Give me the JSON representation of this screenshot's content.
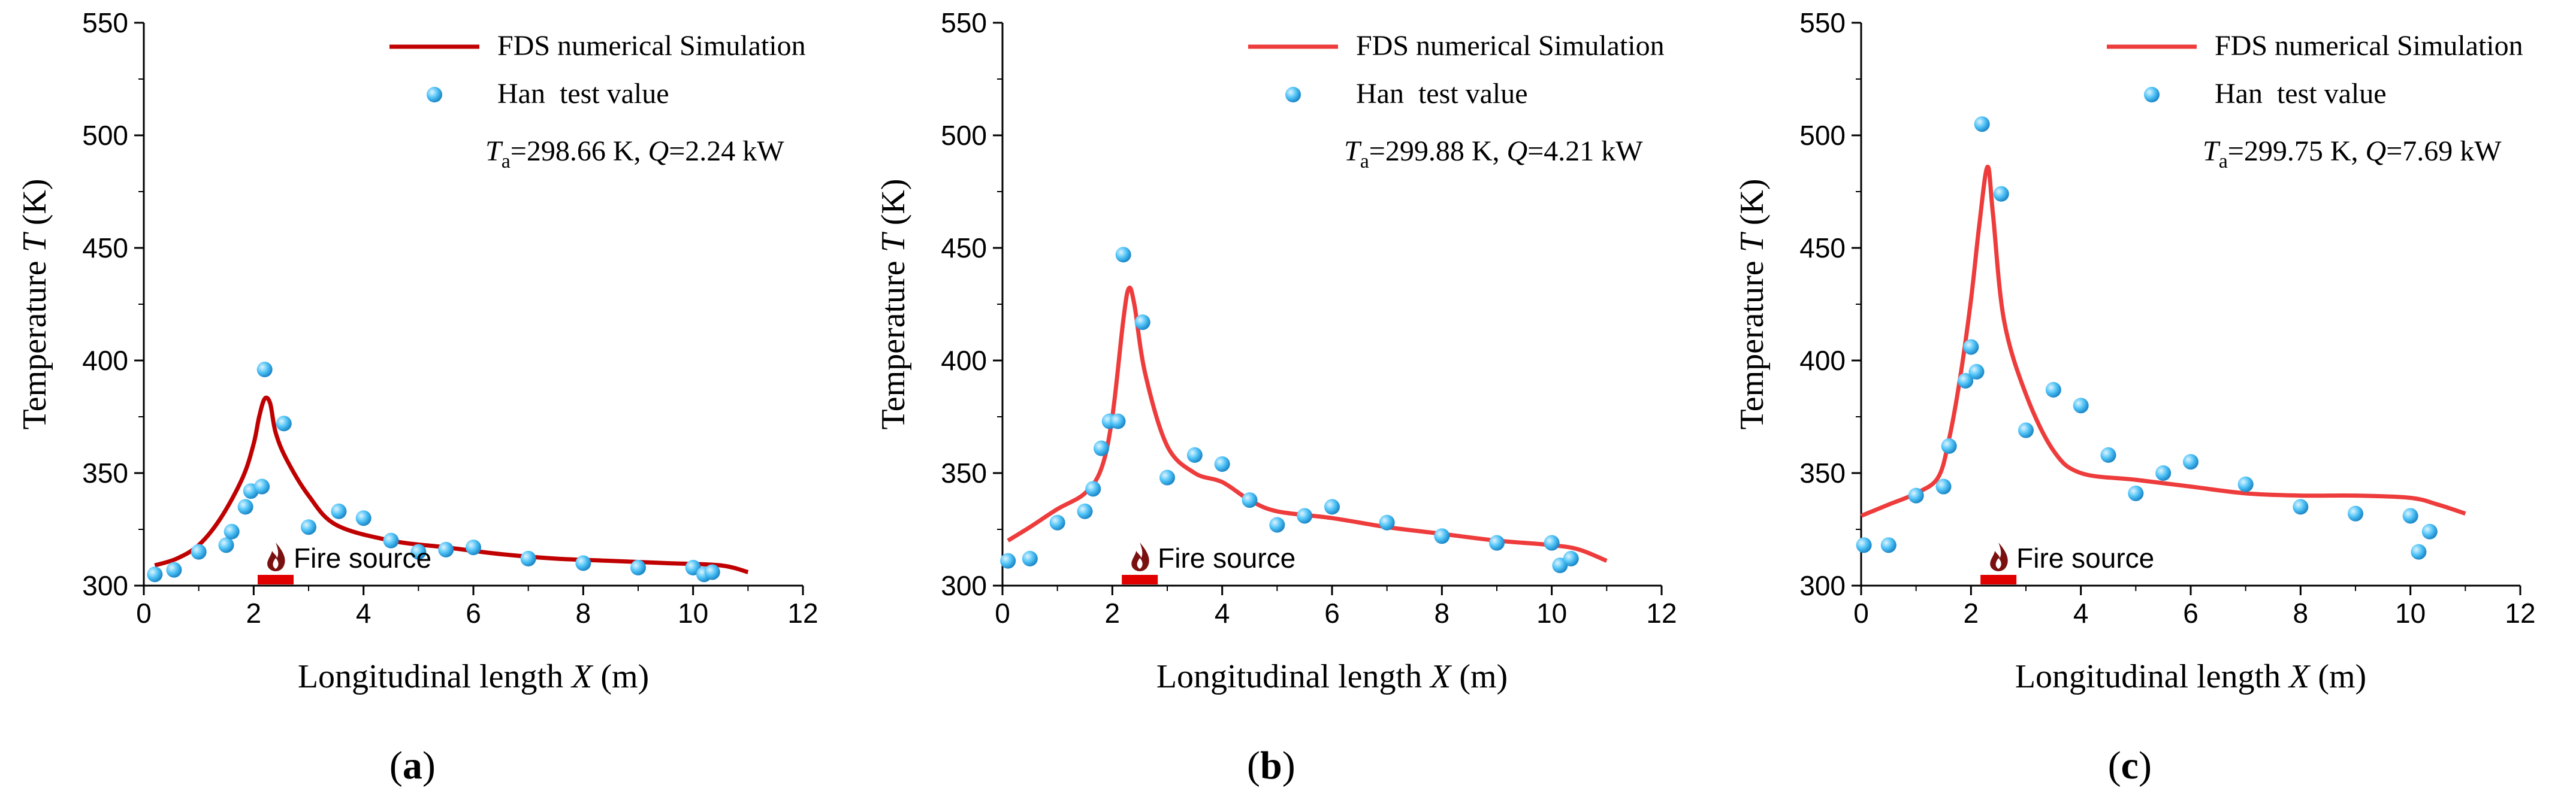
{
  "chart_data": [
    {
      "type": "line+scatter",
      "panel_label": "a",
      "xlabel": "Longitudinal length",
      "xlabel_var": "X",
      "xlabel_unit": "(m)",
      "ylabel": "Temperature",
      "ylabel_var": "T",
      "ylabel_unit": "(K)",
      "xlim": [
        0,
        12
      ],
      "ylim": [
        300,
        550
      ],
      "xticks": [
        0,
        2,
        4,
        6,
        8,
        10,
        12
      ],
      "yticks": [
        300,
        350,
        400,
        450,
        500,
        550
      ],
      "line_color": "#c00000",
      "series": [
        {
          "name": "FDS numerical Simulation",
          "kind": "line",
          "x": [
            0.2,
            0.6,
            1.0,
            1.4,
            1.8,
            2.0,
            2.1,
            2.2,
            2.3,
            2.4,
            2.6,
            3.0,
            3.5,
            4.5,
            5.5,
            6.5,
            7.5,
            8.5,
            9.5,
            10.5,
            11.0
          ],
          "y": [
            309,
            312,
            318,
            330,
            348,
            363,
            375,
            383,
            381,
            368,
            356,
            340,
            327,
            320,
            317,
            314,
            312,
            311,
            310,
            309,
            306
          ]
        },
        {
          "name": "Han  test value",
          "kind": "scatter",
          "x": [
            0.2,
            0.55,
            1.0,
            1.5,
            1.6,
            1.85,
            1.95,
            2.15,
            2.2,
            2.55,
            3.0,
            3.55,
            4.0,
            4.5,
            5.0,
            5.5,
            6.0,
            7.0,
            8.0,
            9.0,
            10.0,
            10.2,
            10.35
          ],
          "y": [
            305,
            307,
            315,
            318,
            324,
            335,
            342,
            344,
            396,
            372,
            326,
            333,
            330,
            320,
            315,
            316,
            317,
            312,
            310,
            308,
            308,
            305,
            306
          ]
        }
      ],
      "annotation": {
        "ta_label": "T",
        "ta_sub": "a",
        "ta_value": "=298.66 K, ",
        "q_label": "Q",
        "q_value": "=2.24 kW"
      },
      "fire_label": "Fire source",
      "fire_x": 2.4
    },
    {
      "type": "line+scatter",
      "panel_label": "b",
      "xlabel": "Longitudinal length",
      "xlabel_var": "X",
      "xlabel_unit": "(m)",
      "ylabel": "Temperature",
      "ylabel_var": "T",
      "ylabel_unit": "(K)",
      "xlim": [
        0,
        12
      ],
      "ylim": [
        300,
        550
      ],
      "xticks": [
        0,
        2,
        4,
        6,
        8,
        10,
        12
      ],
      "yticks": [
        300,
        350,
        400,
        450,
        500,
        550
      ],
      "line_color": "#ee3b3b",
      "series": [
        {
          "name": "FDS  numerical Simulation",
          "kind": "line",
          "x": [
            0.1,
            0.5,
            1.0,
            1.5,
            1.8,
            2.0,
            2.2,
            2.3,
            2.4,
            2.6,
            3.0,
            3.5,
            4.0,
            4.5,
            5.0,
            6.0,
            7.0,
            8.0,
            9.0,
            10.0,
            10.5,
            11.0
          ],
          "y": [
            320,
            326,
            334,
            341,
            352,
            375,
            418,
            432,
            425,
            394,
            362,
            350,
            346,
            338,
            333,
            330,
            326,
            323,
            320,
            318,
            316,
            311
          ]
        },
        {
          "name": "Han  test value",
          "kind": "scatter",
          "x": [
            0.1,
            0.5,
            1.0,
            1.5,
            1.65,
            1.8,
            1.95,
            2.1,
            2.2,
            2.55,
            3.0,
            3.5,
            4.0,
            4.5,
            5.0,
            5.5,
            6.0,
            7.0,
            8.0,
            9.0,
            10.0,
            10.15,
            10.35
          ],
          "y": [
            311,
            312,
            328,
            333,
            343,
            361,
            373,
            373,
            447,
            417,
            348,
            358,
            354,
            338,
            327,
            331,
            335,
            328,
            322,
            319,
            319,
            309,
            312
          ]
        }
      ],
      "annotation": {
        "ta_label": "T",
        "ta_sub": "a",
        "ta_value": "=299.88 K, ",
        "q_label": "Q",
        "q_value": "=4.21 kW"
      },
      "fire_label": "Fire source",
      "fire_x": 2.5
    },
    {
      "type": "line+scatter",
      "panel_label": "c",
      "xlabel": "Longitudinal length",
      "xlabel_var": "X",
      "xlabel_unit": "(m)",
      "ylabel": "Temperature",
      "ylabel_var": "T",
      "ylabel_unit": "(K)",
      "xlim": [
        0,
        12
      ],
      "ylim": [
        300,
        550
      ],
      "xticks": [
        0,
        2,
        4,
        6,
        8,
        10,
        12
      ],
      "yticks": [
        300,
        350,
        400,
        450,
        500,
        550
      ],
      "line_color": "#ee3b3b",
      "series": [
        {
          "name": "FDS  numerical Simulation",
          "kind": "line",
          "x": [
            0.0,
            0.5,
            1.0,
            1.4,
            1.6,
            1.8,
            2.0,
            2.15,
            2.3,
            2.4,
            2.6,
            3.0,
            3.5,
            4.0,
            5.0,
            6.0,
            7.0,
            8.0,
            9.0,
            10.0,
            10.5,
            11.0
          ],
          "y": [
            331,
            336,
            341,
            348,
            365,
            392,
            427,
            460,
            486,
            465,
            418,
            385,
            360,
            350,
            347,
            344,
            341,
            340,
            340,
            339,
            336,
            332
          ]
        },
        {
          "name": "Han  test value",
          "kind": "scatter",
          "x": [
            0.05,
            0.5,
            1.0,
            1.5,
            1.6,
            1.9,
            2.0,
            2.1,
            2.2,
            2.55,
            3.0,
            3.5,
            4.0,
            4.5,
            5.0,
            5.5,
            6.0,
            7.0,
            8.0,
            9.0,
            10.0,
            10.15,
            10.35
          ],
          "y": [
            318,
            318,
            340,
            344,
            362,
            391,
            406,
            395,
            505,
            474,
            369,
            387,
            380,
            358,
            341,
            350,
            355,
            345,
            335,
            332,
            331,
            315,
            324
          ]
        }
      ],
      "annotation": {
        "ta_label": "T",
        "ta_sub": "a",
        "ta_value": "=299.75 K, ",
        "q_label": "Q",
        "q_value": "=7.69 kW"
      },
      "fire_label": "Fire source",
      "fire_x": 2.5
    }
  ],
  "colors": {
    "marker_fill": "#4fc3f7",
    "marker_highlight": "#dff4ff",
    "fire_red": "#e00000",
    "fire_dark": "#7a1010"
  }
}
